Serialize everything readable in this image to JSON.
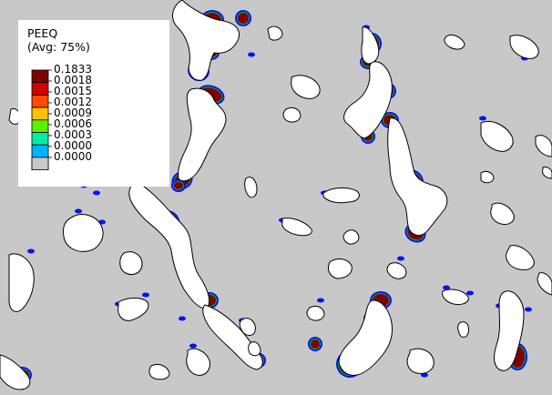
{
  "legend": {
    "title": "PEEQ",
    "subtitle": "(Avg: 75%)",
    "levels": [
      {
        "label": "0.1833",
        "color": "#7f0000"
      },
      {
        "label": "0.0018",
        "color": "#d40000"
      },
      {
        "label": "0.0015",
        "color": "#ff4a00"
      },
      {
        "label": "0.0012",
        "color": "#ffc000"
      },
      {
        "label": "0.0009",
        "color": "#5cf000"
      },
      {
        "label": "0.0006",
        "color": "#00f0a0"
      },
      {
        "label": "0.0003",
        "color": "#00b4ff"
      },
      {
        "label": "0.0000",
        "color": "#0014ff"
      },
      {
        "label": "0.0000",
        "color": "#c8c8c8"
      }
    ]
  },
  "colors": {
    "matrix": "#c8c8c8",
    "pore_fill": "#ffffff",
    "pore_outline": "#000000",
    "band_core": "#7f0000",
    "band_halo": "#0014ff"
  }
}
